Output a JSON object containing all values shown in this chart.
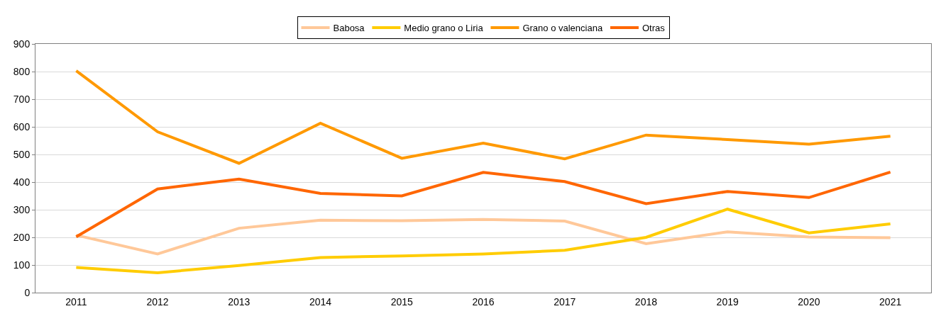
{
  "chart_data": {
    "type": "line",
    "categories": [
      "2011",
      "2012",
      "2013",
      "2014",
      "2015",
      "2016",
      "2017",
      "2018",
      "2019",
      "2020",
      "2021"
    ],
    "series": [
      {
        "name": "Babosa",
        "color": "#ffc899",
        "values": [
          208,
          140,
          233,
          262,
          260,
          265,
          259,
          177,
          220,
          201,
          199
        ]
      },
      {
        "name": "Medio grano o Liria",
        "color": "#ffcc00",
        "values": [
          91,
          72,
          98,
          127,
          133,
          140,
          153,
          200,
          302,
          216,
          249
        ]
      },
      {
        "name": "Grano o valenciana",
        "color": "#ff9900",
        "values": [
          803,
          582,
          468,
          613,
          486,
          541,
          484,
          570,
          554,
          537,
          566
        ]
      },
      {
        "name": "Otras",
        "color": "#ff6600",
        "values": [
          202,
          375,
          411,
          359,
          350,
          435,
          402,
          322,
          366,
          344,
          436
        ]
      }
    ],
    "ylim": [
      0,
      900
    ],
    "yticks": [
      0,
      100,
      200,
      300,
      400,
      500,
      600,
      700,
      800,
      900
    ],
    "grid": "y",
    "legend": "top",
    "marker": "none",
    "line_style": "solid"
  }
}
